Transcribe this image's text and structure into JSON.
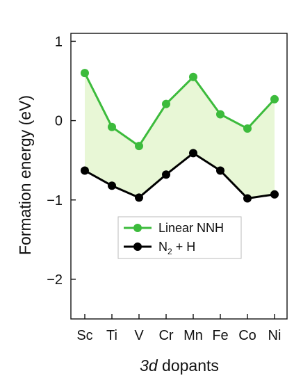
{
  "chart_data": {
    "type": "line",
    "categories": [
      "Sc",
      "Ti",
      "V",
      "Cr",
      "Mn",
      "Fe",
      "Co",
      "Ni"
    ],
    "series": [
      {
        "name": "Linear NNH",
        "values": [
          0.6,
          -0.08,
          -0.32,
          0.21,
          0.55,
          0.08,
          -0.1,
          0.27
        ],
        "color": "#3cbb3c"
      },
      {
        "name": "N₂ + H",
        "name_main": "N",
        "name_sub": "2",
        "name_rest": " + H",
        "values": [
          -0.63,
          -0.82,
          -0.97,
          -0.68,
          -0.41,
          -0.63,
          -0.98,
          -0.93
        ],
        "color": "#000000"
      }
    ],
    "fill_between": {
      "color": "#e8f7d6"
    },
    "ylim": [
      -2.5,
      1.1
    ],
    "yticks": [
      1,
      0,
      -1,
      -2
    ],
    "ytick_labels": [
      "1",
      "0",
      "−1",
      "−2"
    ],
    "ylabel": "Formation energy (eV)",
    "xlabel_italic": "3d",
    "xlabel_rest": " dopants",
    "grid": false,
    "legend_position": "lower-center"
  }
}
